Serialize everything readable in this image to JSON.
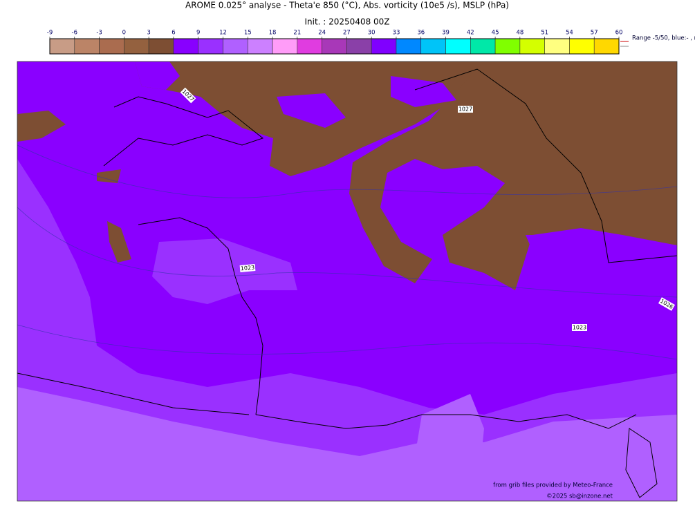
{
  "header": {
    "title": "AROME 0.025° analyse - Theta'e 850 (°C), Abs. vorticity (10e5 /s), MSLP (hPa)",
    "init": "Init. : 20250408 00Z"
  },
  "colorbar": {
    "ticks": [
      -9,
      -6,
      -3,
      0,
      3,
      6,
      9,
      12,
      15,
      18,
      21,
      24,
      27,
      30,
      33,
      36,
      39,
      42,
      45,
      48,
      51,
      54,
      57,
      60
    ],
    "colors": [
      "#c89c86",
      "#bb8467",
      "#aa6c4f",
      "#94613f",
      "#7d4e33",
      "#8800ff",
      "#9a30ff",
      "#b060ff",
      "#cc80ff",
      "#ff9cf8",
      "#e03ce0",
      "#a838b8",
      "#8a40a8",
      "#8000ff",
      "#0088ff",
      "#00c4f8",
      "#00ffff",
      "#00e8a8",
      "#80ff00",
      "#d4ff00",
      "#ffff80",
      "#ffff00",
      "#ffd800"
    ],
    "note": "Range -5/50, blue:- , r"
  },
  "map": {
    "isobar_labels": [
      "1027",
      "1027",
      "1023",
      "1023",
      "1026"
    ]
  },
  "credits": {
    "source": "from grib files provided by Meteo-France",
    "copyright": "©2025 sb@inzone.net"
  }
}
